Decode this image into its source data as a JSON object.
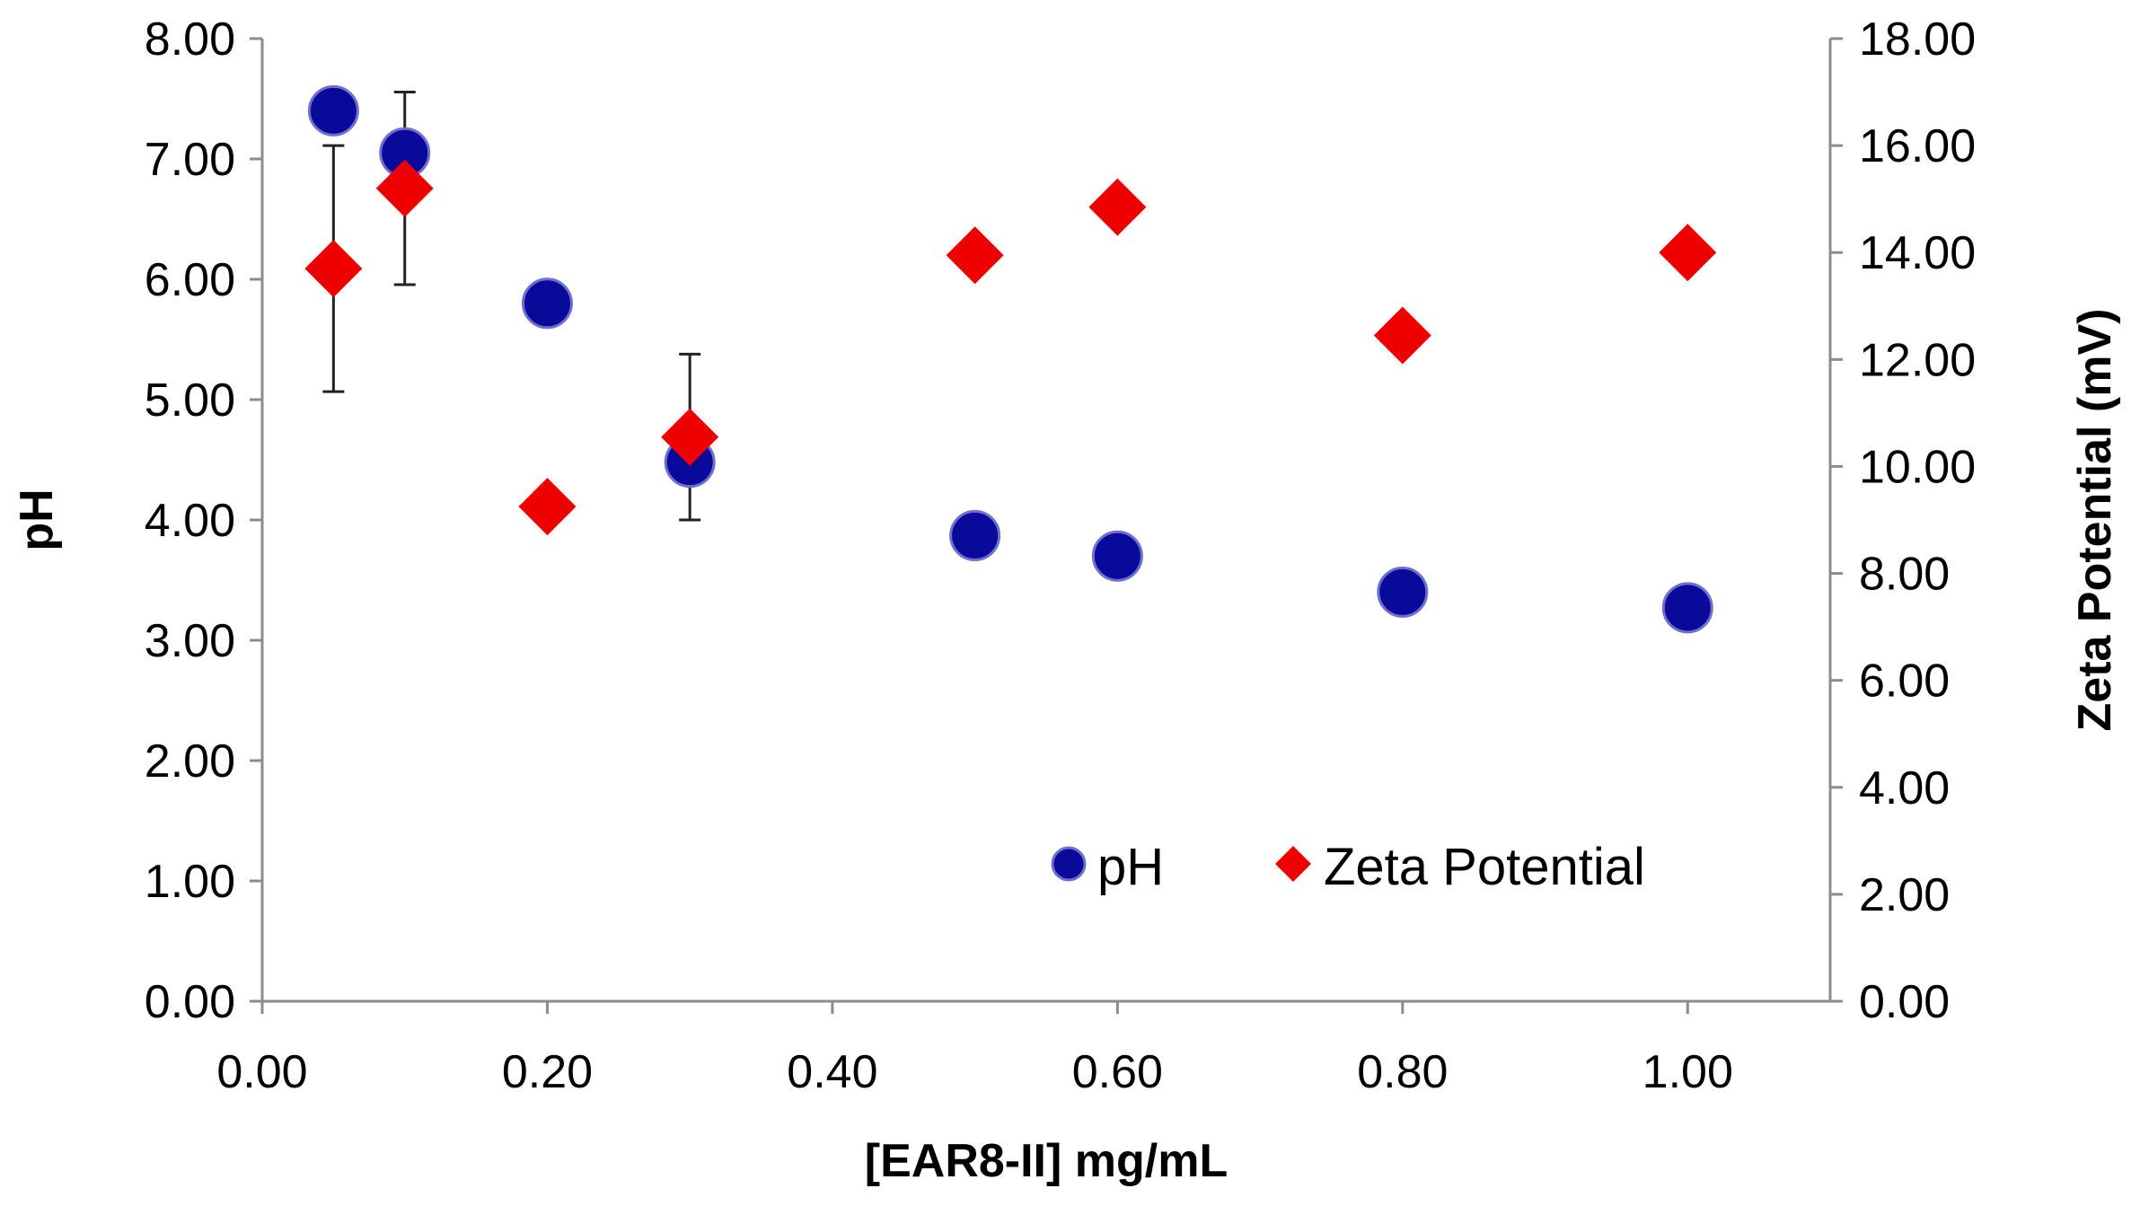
{
  "chart_data": {
    "type": "scatter",
    "title": "",
    "xlabel": "[EAR8-II] mg/mL",
    "ylabel": "pH",
    "y2label": "Zeta Potential (mV)",
    "xlim": [
      0,
      1.1
    ],
    "ylim": [
      0,
      8
    ],
    "y2lim": [
      0,
      18
    ],
    "xticks": [
      "0.00",
      "0.20",
      "0.40",
      "0.60",
      "0.80",
      "1.00"
    ],
    "yticks": [
      "0.00",
      "1.00",
      "2.00",
      "3.00",
      "4.00",
      "5.00",
      "6.00",
      "7.00",
      "8.00"
    ],
    "y2ticks": [
      "0.00",
      "2.00",
      "4.00",
      "6.00",
      "8.00",
      "10.00",
      "12.00",
      "14.00",
      "16.00",
      "18.00"
    ],
    "grid": false,
    "legend_position": "bottom-right",
    "series": [
      {
        "name": "pH",
        "axis": "left",
        "marker": "circle",
        "color": "#0a0a9a",
        "x": [
          0.05,
          0.1,
          0.2,
          0.3,
          0.5,
          0.6,
          0.8,
          1.0
        ],
        "y": [
          7.4,
          7.05,
          5.8,
          4.48,
          3.87,
          3.7,
          3.4,
          3.27
        ]
      },
      {
        "name": "Zeta Potential",
        "axis": "right",
        "marker": "diamond",
        "color": "#ee0000",
        "x": [
          0.05,
          0.1,
          0.2,
          0.3,
          0.5,
          0.6,
          0.8,
          1.0
        ],
        "y": [
          13.7,
          15.2,
          9.25,
          10.55,
          13.95,
          14.85,
          12.45,
          14.0
        ],
        "error": [
          2.3,
          1.8,
          null,
          1.55,
          0.2,
          null,
          null,
          null
        ]
      }
    ]
  }
}
